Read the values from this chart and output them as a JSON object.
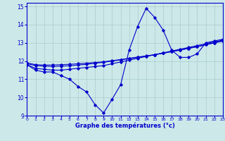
{
  "xlabel": "Graphe des températures (°c)",
  "bg_color": "#cce8e8",
  "line_color": "#0000cc",
  "grid_color": "#aacccc",
  "x_ticks": [
    0,
    1,
    2,
    3,
    4,
    5,
    6,
    7,
    8,
    9,
    10,
    11,
    12,
    13,
    14,
    15,
    16,
    17,
    18,
    19,
    20,
    21,
    22,
    23
  ],
  "y_ticks": [
    9,
    10,
    11,
    12,
    13,
    14,
    15
  ],
  "xlim": [
    0,
    23
  ],
  "ylim": [
    9.0,
    15.2
  ],
  "curve_main": [
    11.8,
    11.5,
    11.4,
    11.4,
    11.2,
    11.0,
    10.6,
    10.3,
    9.6,
    9.15,
    9.9,
    10.7,
    12.6,
    13.9,
    14.9,
    14.4,
    13.7,
    12.6,
    12.2,
    12.2,
    12.4,
    13.0,
    13.1,
    13.2
  ],
  "curve_line1": [
    11.8,
    11.6,
    11.55,
    11.5,
    11.5,
    11.55,
    11.6,
    11.65,
    11.7,
    11.75,
    11.85,
    11.95,
    12.05,
    12.15,
    12.25,
    12.35,
    12.45,
    12.55,
    12.65,
    12.75,
    12.85,
    12.95,
    13.05,
    13.15
  ],
  "curve_line2": [
    11.85,
    11.75,
    11.72,
    11.7,
    11.72,
    11.74,
    11.78,
    11.82,
    11.88,
    11.93,
    12.0,
    12.07,
    12.13,
    12.2,
    12.27,
    12.35,
    12.43,
    12.52,
    12.61,
    12.7,
    12.79,
    12.9,
    13.0,
    13.1
  ],
  "curve_line3": [
    11.9,
    11.8,
    11.78,
    11.78,
    11.8,
    11.82,
    11.85,
    11.88,
    11.92,
    11.96,
    12.02,
    12.08,
    12.15,
    12.22,
    12.28,
    12.35,
    12.43,
    12.52,
    12.6,
    12.7,
    12.79,
    12.9,
    13.0,
    13.1
  ]
}
